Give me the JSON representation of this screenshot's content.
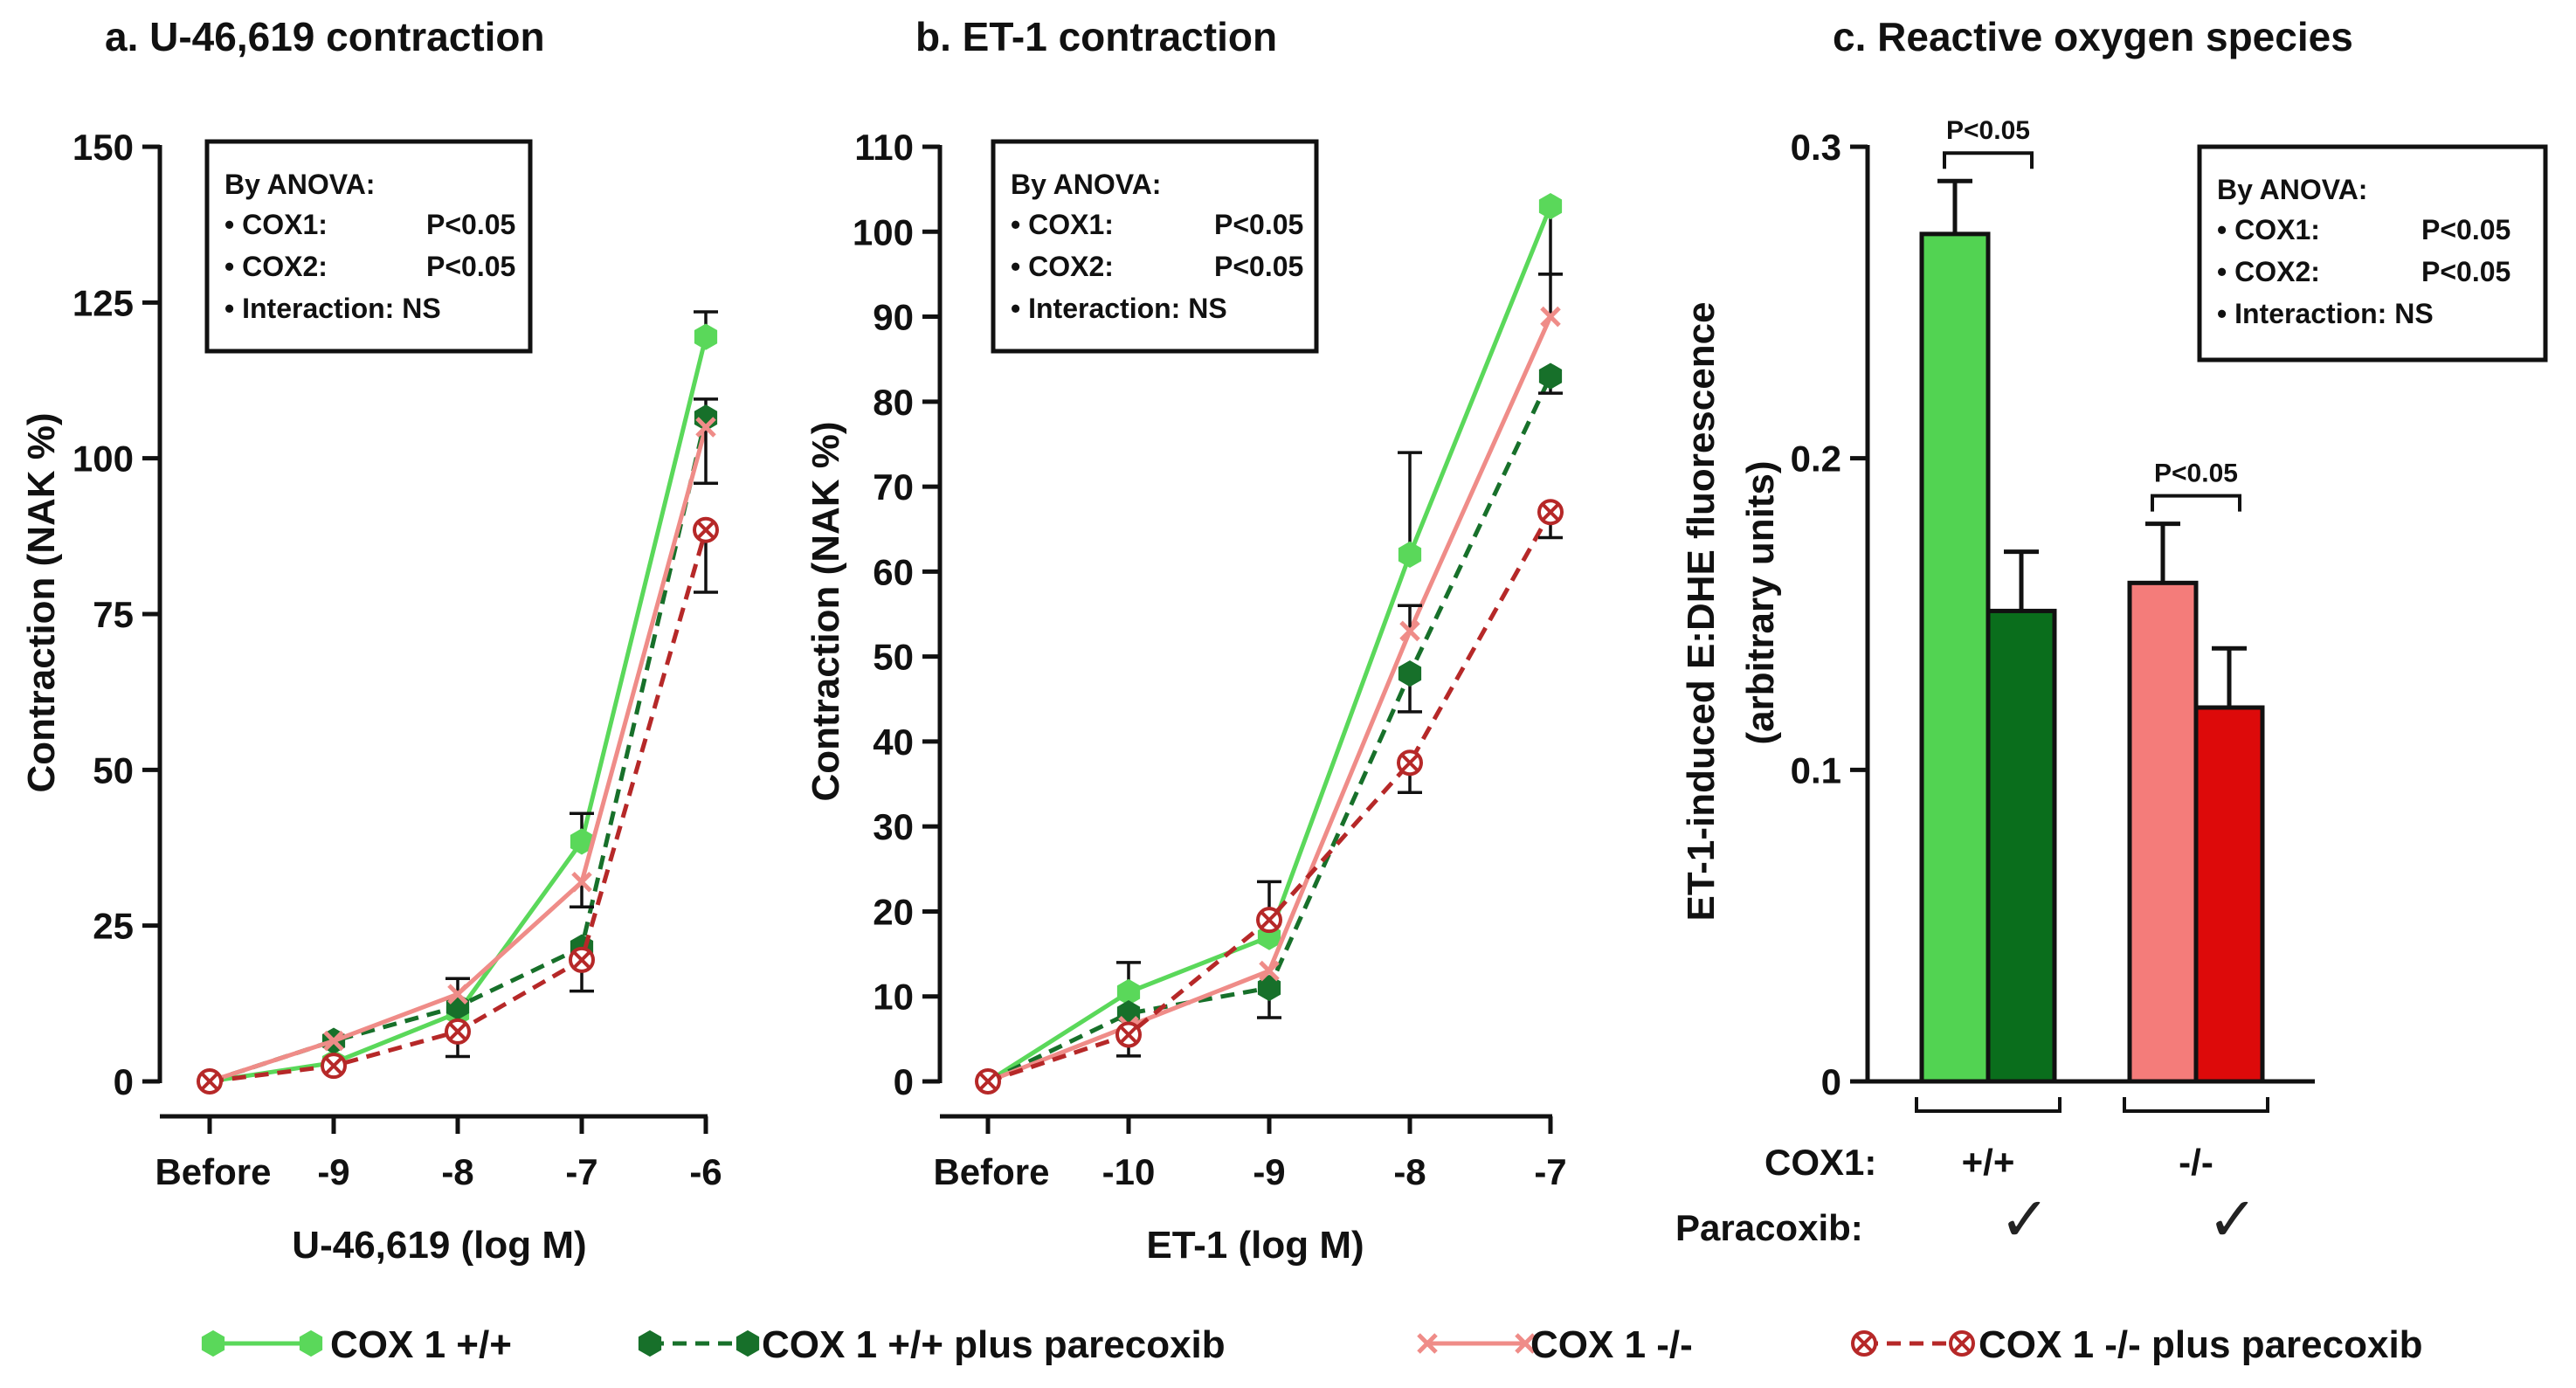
{
  "chart_data": [
    {
      "type": "line",
      "panel": "a",
      "title": "a. U-46,619 contraction",
      "xlabel": "U-46,619 (log M)",
      "ylabel": "Contraction (NAK %)",
      "categories": [
        "Before",
        "-9",
        "-8",
        "-7",
        "-6"
      ],
      "ylim": [
        0,
        150
      ],
      "yticks": [
        "0",
        "25",
        "50",
        "75",
        "100",
        "125",
        "150"
      ],
      "stats_box": {
        "heading": "By ANOVA:",
        "rows": [
          {
            "label": "• COX1:",
            "value": "P<0.05"
          },
          {
            "label": "• COX2:",
            "value": "P<0.05"
          },
          {
            "label": "• Interaction: NS",
            "value": ""
          }
        ]
      },
      "series": [
        {
          "name": "COX 1 +/+",
          "values": [
            0,
            3,
            11,
            38.5,
            119.5
          ],
          "err_up": [
            0,
            0,
            0,
            4.5,
            4
          ],
          "err_down": [
            0,
            0,
            0,
            0,
            0
          ]
        },
        {
          "name": "COX 1 +/+ plus parecoxib",
          "values": [
            0,
            6.5,
            12,
            21.5,
            106.5
          ],
          "err_up": [
            0,
            0,
            0,
            0,
            3
          ],
          "err_down": [
            0,
            0,
            0,
            0,
            0
          ]
        },
        {
          "name": "COX 1 -/-",
          "values": [
            0,
            6.5,
            14,
            32,
            105
          ],
          "err_up": [
            0,
            0,
            2.5,
            0,
            0
          ],
          "err_down": [
            0,
            0,
            0,
            4,
            9
          ]
        },
        {
          "name": "COX 1 -/- plus parecoxib",
          "values": [
            0,
            2.5,
            8,
            19.5,
            88.5
          ],
          "err_up": [
            0,
            0,
            0,
            0,
            0
          ],
          "err_down": [
            0,
            0,
            4,
            5,
            10
          ]
        }
      ]
    },
    {
      "type": "line",
      "panel": "b",
      "title": "b. ET-1 contraction",
      "xlabel": "ET-1 (log M)",
      "ylabel": "Contraction (NAK %)",
      "categories": [
        "Before",
        "-10",
        "-9",
        "-8",
        "-7"
      ],
      "ylim": [
        0,
        110
      ],
      "yticks": [
        "0",
        "10",
        "20",
        "30",
        "40",
        "50",
        "60",
        "70",
        "80",
        "90",
        "100",
        "110"
      ],
      "stats_box": {
        "heading": "By ANOVA:",
        "rows": [
          {
            "label": "• COX1:",
            "value": "P<0.05"
          },
          {
            "label": "• COX2:",
            "value": "P<0.05"
          },
          {
            "label": "• Interaction: NS",
            "value": ""
          }
        ]
      },
      "series": [
        {
          "name": "COX 1 +/+",
          "values": [
            0,
            10.5,
            17,
            62,
            103
          ],
          "err_up": [
            0,
            3.5,
            6.5,
            12,
            0
          ],
          "err_down": [
            0,
            0,
            0,
            0,
            8
          ]
        },
        {
          "name": "COX 1 +/+ plus parecoxib",
          "values": [
            0,
            8,
            11,
            48,
            83
          ],
          "err_up": [
            0,
            0,
            0,
            0,
            0
          ],
          "err_down": [
            0,
            0,
            3.5,
            4.5,
            2
          ]
        },
        {
          "name": "COX 1 -/-",
          "values": [
            0,
            6.5,
            13,
            53,
            90
          ],
          "err_up": [
            0,
            0,
            0,
            3,
            5
          ],
          "err_down": [
            0,
            0,
            0,
            0,
            0
          ]
        },
        {
          "name": "COX 1 -/- plus parecoxib",
          "values": [
            0,
            5.5,
            19,
            37.5,
            67
          ],
          "err_up": [
            0,
            0,
            0,
            0,
            0
          ],
          "err_down": [
            0,
            2.5,
            0,
            3.5,
            3
          ]
        }
      ]
    },
    {
      "type": "bar",
      "panel": "c",
      "title": "c. Reactive oxygen species",
      "ylabel": "ET-1-induced E:DHE fluorescence",
      "ylabel2": "(arbitrary units)",
      "ylim": [
        0,
        0.3
      ],
      "yticks": [
        "0",
        "0.1",
        "0.2",
        "0.3"
      ],
      "groups": [
        {
          "cox1": "+/+",
          "values": [
            0.272,
            0.151
          ],
          "err": [
            0.017,
            0.019
          ],
          "colors": [
            "#52d352",
            "#0a6e1c"
          ],
          "significance": "P<0.05"
        },
        {
          "cox1": "-/-",
          "values": [
            0.16,
            0.12
          ],
          "err": [
            0.019,
            0.019
          ],
          "colors": [
            "#f47c7a",
            "#dd0a0a"
          ],
          "significance": "P<0.05"
        }
      ],
      "row_labels": [
        "COX1:",
        "Paracoxib:"
      ],
      "check_mark": "✓",
      "stats_box": {
        "heading": "By ANOVA:",
        "rows": [
          {
            "label": "• COX1:",
            "value": "P<0.05"
          },
          {
            "label": "• COX2:",
            "value": "P<0.05"
          },
          {
            "label": "• Interaction: NS",
            "value": ""
          }
        ]
      }
    }
  ],
  "legend": [
    {
      "name": "COX 1 +/+",
      "color": "#5ad85a",
      "dash": "",
      "marker": "hex-light"
    },
    {
      "name": "COX 1 +/+ plus parecoxib",
      "color": "#17702a",
      "dash": "16,10",
      "marker": "hex-dark"
    },
    {
      "name": "COX 1 -/-",
      "color": "#ef8c88",
      "dash": "",
      "marker": "cross"
    },
    {
      "name": "COX 1 -/- plus parecoxib",
      "color": "#b62828",
      "dash": "16,10",
      "marker": "otimes"
    }
  ]
}
